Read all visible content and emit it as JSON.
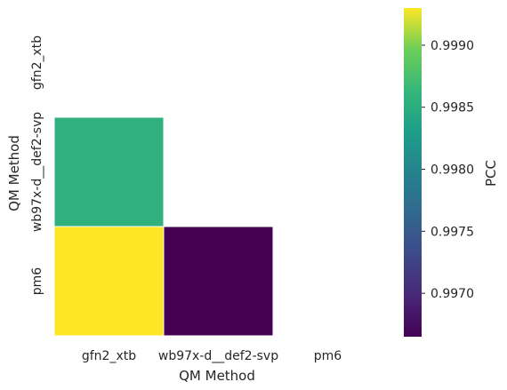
{
  "chart_data": {
    "type": "heatmap",
    "categories": [
      "gfn2_xtb",
      "wb97x-d__def2-svp",
      "pm6"
    ],
    "xlabel": "QM Method",
    "ylabel": "QM Method",
    "colorbar_label": "PCC",
    "colormap": "viridis",
    "mask": "upper-triangle-including-diagonal",
    "cells": [
      {
        "row": "wb97x-d__def2-svp",
        "col": "gfn2_xtb",
        "value": 0.99855
      },
      {
        "row": "pm6",
        "col": "gfn2_xtb",
        "value": 0.9993
      },
      {
        "row": "pm6",
        "col": "wb97x-d__def2-svp",
        "value": 0.99665
      }
    ],
    "vmin": 0.99665,
    "vmax": 0.9993,
    "colorbar_ticks": [
      "0.9970",
      "0.9975",
      "0.9980",
      "0.9985",
      "0.9990"
    ],
    "grid": false
  }
}
